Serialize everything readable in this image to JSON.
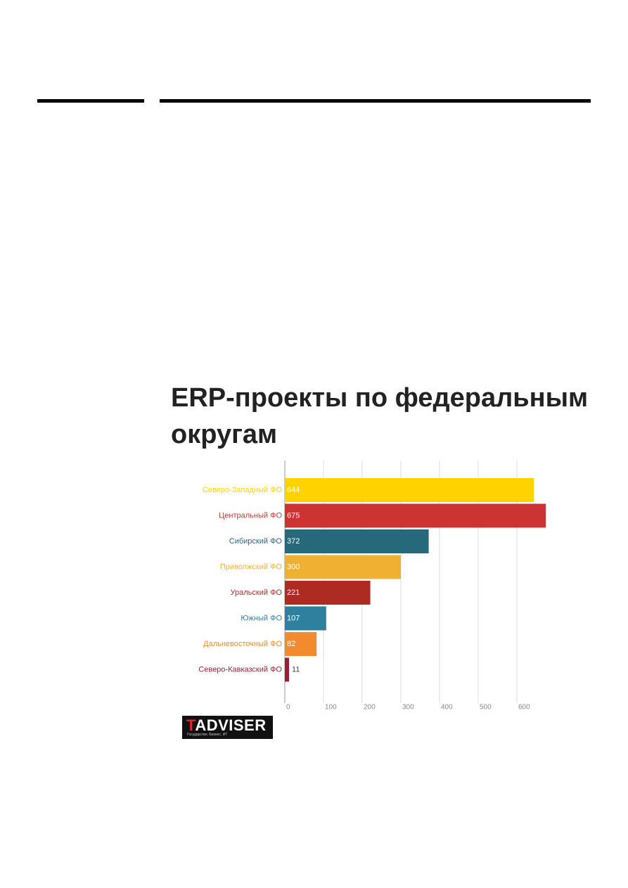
{
  "chart_data": {
    "type": "barh",
    "title": "ERP-проекты по федеральным округам",
    "categories": [
      "Северо-Западный ФО",
      "Центральный ФО",
      "Сибирский ФО",
      "Приволжский ФО",
      "Уральский ФО",
      "Южный ФО",
      "Дальневосточный ФО",
      "Северо-Кавказский ФО"
    ],
    "values": [
      644,
      675,
      372,
      300,
      221,
      107,
      82,
      11
    ],
    "colors": [
      "#ffd200",
      "#cc3434",
      "#25697a",
      "#f0b133",
      "#ae2b24",
      "#2f7f9e",
      "#f28a2e",
      "#9a1f36"
    ],
    "xlim": [
      0,
      700
    ],
    "xticks": [
      0,
      100,
      200,
      300,
      400,
      500,
      600
    ],
    "grid": true
  },
  "logo": {
    "mark": "T",
    "name": "ADVISER",
    "tagline": "Государство. Бизнес. ИТ"
  }
}
